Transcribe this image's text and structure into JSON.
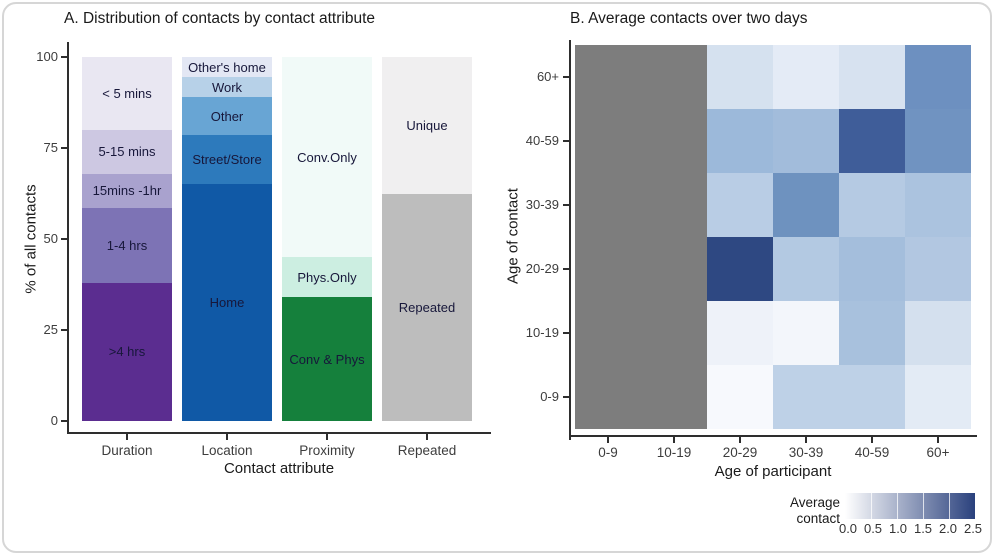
{
  "figure": {
    "background": "#ffffff",
    "card_border_color": "#d6d6d6"
  },
  "chart_data": [
    {
      "id": "panel_a",
      "type": "bar",
      "stacked": true,
      "units": "percent",
      "title": "A. Distribution of contacts by contact attribute",
      "xlabel": "Contact attribute",
      "ylabel": "% of all contacts",
      "ylim": [
        0,
        100
      ],
      "grid": false,
      "y_ticks": [
        "0",
        "25",
        "50",
        "75",
        "100"
      ],
      "categories": [
        "Duration",
        "Location",
        "Proximity",
        "Repeated"
      ],
      "bars": [
        {
          "category": "Duration",
          "segments_bottom_to_top": [
            {
              "label": ">4 hrs",
              "value": 38,
              "color": "#5b2d90"
            },
            {
              "label": "1-4 hrs",
              "value": 20.5,
              "color": "#7d73b5"
            },
            {
              "label": "15mins -1hr",
              "value": 9.5,
              "color": "#a9a2ce"
            },
            {
              "label": "5-15 mins",
              "value": 12,
              "color": "#cdc8e2"
            },
            {
              "label": "< 5 mins",
              "value": 20,
              "color": "#e9e7f2"
            }
          ]
        },
        {
          "category": "Location",
          "segments_bottom_to_top": [
            {
              "label": "Home",
              "value": 65,
              "color": "#1059a6"
            },
            {
              "label": "Street/Store",
              "value": 13.5,
              "color": "#2d7abc"
            },
            {
              "label": "Other",
              "value": 10.5,
              "color": "#68a5d4"
            },
            {
              "label": "Work",
              "value": 5.5,
              "color": "#b7d1e8"
            },
            {
              "label": "Other's home",
              "value": 5.5,
              "color": "#e3e7f4"
            }
          ]
        },
        {
          "category": "Proximity",
          "segments_bottom_to_top": [
            {
              "label": "Conv & Phys",
              "value": 34,
              "color": "#15803c"
            },
            {
              "label": "Phys.Only",
              "value": 11,
              "color": "#cceee1"
            },
            {
              "label": "Conv.Only",
              "value": 55,
              "color": "#f1faf8"
            }
          ]
        },
        {
          "category": "Repeated",
          "segments_bottom_to_top": [
            {
              "label": "Repeated",
              "value": 62.5,
              "color": "#bdbdbd"
            },
            {
              "label": "Unique",
              "value": 37.5,
              "color": "#f0eff0"
            }
          ]
        }
      ]
    },
    {
      "id": "panel_b",
      "type": "heatmap",
      "title": "B. Average contacts over two days",
      "xlabel": "Age of participant",
      "ylabel": "Age of contact",
      "x_categories": [
        "0-9",
        "10-19",
        "20-29",
        "30-39",
        "40-59",
        "60+"
      ],
      "y_categories_top_to_bottom": [
        "60+",
        "40-59",
        "30-39",
        "20-29",
        "10-19",
        "0-9"
      ],
      "na_color": "#7d7d7d",
      "value_scale": [
        0,
        2.5
      ],
      "rows": [
        {
          "age_of_contact": "60+",
          "values": [
            null,
            null,
            0.45,
            0.3,
            0.5,
            1.5
          ],
          "colors": [
            null,
            null,
            "#d5e1ef",
            "#e4ebf6",
            "#d7e2f0",
            "#6d90c0"
          ]
        },
        {
          "age_of_contact": "40-59",
          "values": [
            null,
            null,
            1.1,
            1.0,
            2.3,
            1.45
          ],
          "colors": [
            null,
            null,
            "#9cb9da",
            "#a2bcdb",
            "#3f5d99",
            "#7093c1"
          ]
        },
        {
          "age_of_contact": "30-39",
          "values": [
            null,
            null,
            0.8,
            1.5,
            0.85,
            0.95
          ],
          "colors": [
            null,
            null,
            "#b9cde5",
            "#6e92bf",
            "#b5cae3",
            "#abc3df"
          ]
        },
        {
          "age_of_contact": "20-29",
          "values": [
            null,
            null,
            2.5,
            0.85,
            1.0,
            0.9
          ],
          "colors": [
            null,
            null,
            "#2e4882",
            "#b3c9e2",
            "#a4bedc",
            "#b2c7e1"
          ]
        },
        {
          "age_of_contact": "10-19",
          "values": [
            null,
            null,
            0.2,
            0.15,
            1.0,
            0.5
          ],
          "colors": [
            null,
            null,
            "#eef2f9",
            "#f3f6fb",
            "#a8c1dd",
            "#d4e0ee"
          ]
        },
        {
          "age_of_contact": "0-9",
          "values": [
            null,
            null,
            0.1,
            0.75,
            0.75,
            0.35
          ],
          "colors": [
            null,
            null,
            "#f7f9fd",
            "#bed1e7",
            "#bed1e7",
            "#e3ebf5"
          ]
        }
      ],
      "legend": {
        "title_lines": [
          "Average",
          "contact"
        ],
        "tick_labels": [
          "0.0",
          "0.5",
          "1.0",
          "1.5",
          "2.0",
          "2.5"
        ],
        "gradient_start": "#ffffff",
        "gradient_end": "#2a417d",
        "position": "bottom-right"
      }
    }
  ]
}
